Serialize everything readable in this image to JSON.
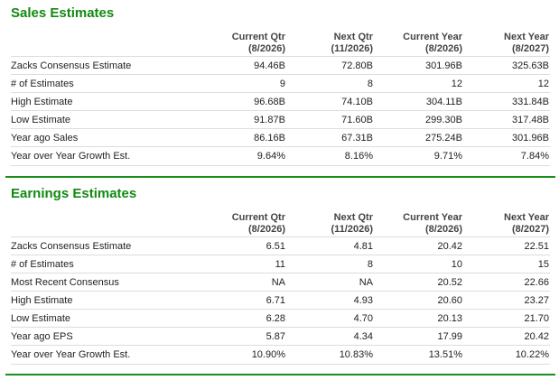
{
  "sales": {
    "title": "Sales Estimates",
    "columns": [
      {
        "line1": "Current Qtr",
        "line2": "(8/2026)"
      },
      {
        "line1": "Next Qtr",
        "line2": "(11/2026)"
      },
      {
        "line1": "Current Year",
        "line2": "(8/2026)"
      },
      {
        "line1": "Next Year",
        "line2": "(8/2027)"
      }
    ],
    "rows": [
      {
        "label": "Zacks Consensus Estimate",
        "values": [
          "94.46B",
          "72.80B",
          "301.96B",
          "325.63B"
        ]
      },
      {
        "label": "# of Estimates",
        "values": [
          "9",
          "8",
          "12",
          "12"
        ]
      },
      {
        "label": "High Estimate",
        "values": [
          "96.68B",
          "74.10B",
          "304.11B",
          "331.84B"
        ]
      },
      {
        "label": "Low Estimate",
        "values": [
          "91.87B",
          "71.60B",
          "299.30B",
          "317.48B"
        ]
      },
      {
        "label": "Year ago Sales",
        "values": [
          "86.16B",
          "67.31B",
          "275.24B",
          "301.96B"
        ]
      },
      {
        "label": "Year over Year Growth Est.",
        "values": [
          "9.64%",
          "8.16%",
          "9.71%",
          "7.84%"
        ]
      }
    ]
  },
  "earnings": {
    "title": "Earnings Estimates",
    "columns": [
      {
        "line1": "Current Qtr",
        "line2": "(8/2026)"
      },
      {
        "line1": "Next Qtr",
        "line2": "(11/2026)"
      },
      {
        "line1": "Current Year",
        "line2": "(8/2026)"
      },
      {
        "line1": "Next Year",
        "line2": "(8/2027)"
      }
    ],
    "rows": [
      {
        "label": "Zacks Consensus Estimate",
        "values": [
          "6.51",
          "4.81",
          "20.42",
          "22.51"
        ]
      },
      {
        "label": "# of Estimates",
        "values": [
          "11",
          "8",
          "10",
          "15"
        ]
      },
      {
        "label": "Most Recent Consensus",
        "values": [
          "NA",
          "NA",
          "20.52",
          "22.66"
        ]
      },
      {
        "label": "High Estimate",
        "values": [
          "6.71",
          "4.93",
          "20.60",
          "23.27"
        ]
      },
      {
        "label": "Low Estimate",
        "values": [
          "6.28",
          "4.70",
          "20.13",
          "21.70"
        ]
      },
      {
        "label": "Year ago EPS",
        "values": [
          "5.87",
          "4.34",
          "17.99",
          "20.42"
        ]
      },
      {
        "label": "Year over Year Growth Est.",
        "values": [
          "10.90%",
          "10.83%",
          "13.51%",
          "10.22%"
        ]
      }
    ]
  },
  "colors": {
    "accent": "#118a11",
    "rule": "#1a8f1a",
    "row_border": "#dddddd"
  }
}
